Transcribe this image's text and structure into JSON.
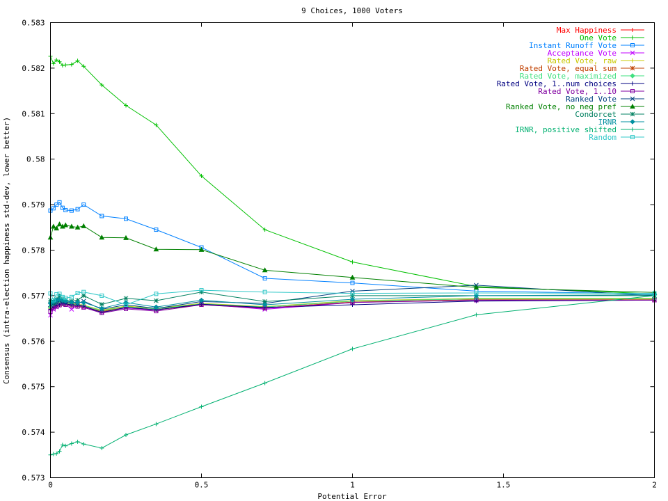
{
  "chart_data": {
    "type": "line",
    "title": "9 Choices, 1000 Voters",
    "xlabel": "Potential Error",
    "ylabel": "Consensus (intra-election happiness std-dev, lower better)",
    "xlim": [
      0,
      2
    ],
    "ylim": [
      0.573,
      0.583
    ],
    "x_ticks": [
      0,
      0.5,
      1,
      1.5,
      2
    ],
    "x_tick_labels": [
      "0",
      "0.5",
      "1",
      "1.5",
      "2"
    ],
    "y_ticks": [
      0.573,
      0.574,
      0.575,
      0.576,
      0.577,
      0.578,
      0.579,
      0.58,
      0.581,
      0.582,
      0.583
    ],
    "y_tick_labels": [
      "0.573",
      "0.574",
      "0.575",
      "0.576",
      "0.577",
      "0.578",
      "0.579",
      "0.58",
      "0.581",
      "0.582",
      "0.583"
    ],
    "grid": false,
    "legend_position": "top-right",
    "x": [
      0,
      0.01,
      0.02,
      0.03,
      0.04,
      0.05,
      0.07,
      0.09,
      0.11,
      0.17,
      0.25,
      0.35,
      0.5,
      0.71,
      1,
      1.41,
      2
    ],
    "series": [
      {
        "name": "Max Happiness",
        "color": "#ff0000",
        "marker": "plus",
        "values": [
          0.57674,
          0.57678,
          0.5768,
          0.57682,
          0.57684,
          0.57683,
          0.57681,
          0.5768,
          0.57678,
          0.57667,
          0.57676,
          0.57671,
          0.57682,
          0.57675,
          0.57688,
          0.57693,
          0.57693
        ]
      },
      {
        "name": "One Vote",
        "color": "#00c000",
        "marker": "plus",
        "values": [
          0.58226,
          0.5821,
          0.58218,
          0.58214,
          0.58206,
          0.58207,
          0.58208,
          0.58216,
          0.58204,
          0.58163,
          0.58118,
          0.58075,
          0.57963,
          0.57845,
          0.57774,
          0.5772,
          0.57704
        ]
      },
      {
        "name": "Instant Runoff Vote",
        "color": "#0080ff",
        "marker": "square",
        "values": [
          0.57887,
          0.57892,
          0.579,
          0.57905,
          0.57893,
          0.57888,
          0.57887,
          0.5789,
          0.579,
          0.57875,
          0.57869,
          0.57845,
          0.57806,
          0.57738,
          0.57728,
          0.5771,
          0.57704
        ]
      },
      {
        "name": "Acceptance Vote",
        "color": "#c000ff",
        "marker": "x",
        "values": [
          0.57657,
          0.5767,
          0.57675,
          0.5768,
          0.57685,
          0.57681,
          0.5767,
          0.57678,
          0.57674,
          0.57664,
          0.57673,
          0.57668,
          0.57682,
          0.5767,
          0.57685,
          0.5769,
          0.5769
        ]
      },
      {
        "name": "Rated Vote, raw",
        "color": "#c8c800",
        "marker": "plus",
        "values": [
          0.57676,
          0.57679,
          0.57681,
          0.57683,
          0.57685,
          0.57684,
          0.57682,
          0.57681,
          0.57679,
          0.57668,
          0.57677,
          0.57672,
          0.57683,
          0.57676,
          0.57689,
          0.57694,
          0.57694
        ]
      },
      {
        "name": "Rated Vote, equal sum",
        "color": "#c04000",
        "marker": "star",
        "values": [
          0.57672,
          0.57676,
          0.57678,
          0.5768,
          0.57682,
          0.57681,
          0.57679,
          0.57678,
          0.57676,
          0.57665,
          0.57674,
          0.57669,
          0.5768,
          0.57673,
          0.57686,
          0.57691,
          0.57691
        ]
      },
      {
        "name": "Rated Vote, maximized",
        "color": "#40e080",
        "marker": "diamond",
        "values": [
          0.57675,
          0.57678,
          0.5768,
          0.57682,
          0.57684,
          0.57683,
          0.57681,
          0.5768,
          0.57678,
          0.57667,
          0.57676,
          0.57671,
          0.57682,
          0.57675,
          0.57688,
          0.57693,
          0.57693
        ]
      },
      {
        "name": "Rated Vote, 1..num choices",
        "color": "#000080",
        "marker": "plus",
        "values": [
          0.5767,
          0.57675,
          0.57678,
          0.5768,
          0.57683,
          0.57682,
          0.5768,
          0.57679,
          0.57677,
          0.57663,
          0.57674,
          0.57669,
          0.57681,
          0.57674,
          0.5768,
          0.57688,
          0.5769
        ]
      },
      {
        "name": "Rated Vote, 1..10",
        "color": "#8000a0",
        "marker": "square",
        "values": [
          0.57665,
          0.57672,
          0.57676,
          0.57679,
          0.57682,
          0.5768,
          0.57677,
          0.57676,
          0.57674,
          0.57662,
          0.57671,
          0.57666,
          0.5768,
          0.57672,
          0.57685,
          0.5769,
          0.5769
        ]
      },
      {
        "name": "Ranked Vote",
        "color": "#004080",
        "marker": "x",
        "values": [
          0.5768,
          0.57682,
          0.57685,
          0.57688,
          0.57687,
          0.57686,
          0.57684,
          0.57683,
          0.57688,
          0.5767,
          0.5768,
          0.57672,
          0.57687,
          0.57683,
          0.5771,
          0.57723,
          0.577
        ]
      },
      {
        "name": "Ranked Vote, no neg pref",
        "color": "#008000",
        "marker": "triangle",
        "values": [
          0.57828,
          0.57852,
          0.57848,
          0.57857,
          0.57852,
          0.57855,
          0.57852,
          0.5785,
          0.57853,
          0.57828,
          0.57827,
          0.57802,
          0.57801,
          0.57756,
          0.5774,
          0.57718,
          0.57707
        ]
      },
      {
        "name": "Condorcet",
        "color": "#008060",
        "marker": "star",
        "values": [
          0.5769,
          0.57685,
          0.57692,
          0.577,
          0.57692,
          0.5769,
          0.57688,
          0.5769,
          0.577,
          0.57681,
          0.57694,
          0.57689,
          0.57708,
          0.57687,
          0.577,
          0.577,
          0.577
        ]
      },
      {
        "name": "IRNR",
        "color": "#0090a0",
        "marker": "diamond",
        "values": [
          0.57683,
          0.57687,
          0.5769,
          0.57692,
          0.5769,
          0.57688,
          0.57686,
          0.57685,
          0.57685,
          0.57672,
          0.57685,
          0.57675,
          0.5769,
          0.5768,
          0.57692,
          0.577,
          0.57702
        ]
      },
      {
        "name": "IRNR, positive shifted",
        "color": "#00b070",
        "marker": "plus",
        "values": [
          0.5735,
          0.57352,
          0.57353,
          0.57358,
          0.57372,
          0.5737,
          0.57375,
          0.57379,
          0.57374,
          0.57365,
          0.57394,
          0.57418,
          0.57456,
          0.57508,
          0.57583,
          0.57658,
          0.577
        ]
      },
      {
        "name": "Random",
        "color": "#30c8c8",
        "marker": "square",
        "values": [
          0.57705,
          0.5769,
          0.57703,
          0.57704,
          0.57697,
          0.57695,
          0.57697,
          0.57706,
          0.57708,
          0.577,
          0.5768,
          0.57704,
          0.57712,
          0.57708,
          0.57705,
          0.57706,
          0.57705
        ]
      }
    ]
  }
}
